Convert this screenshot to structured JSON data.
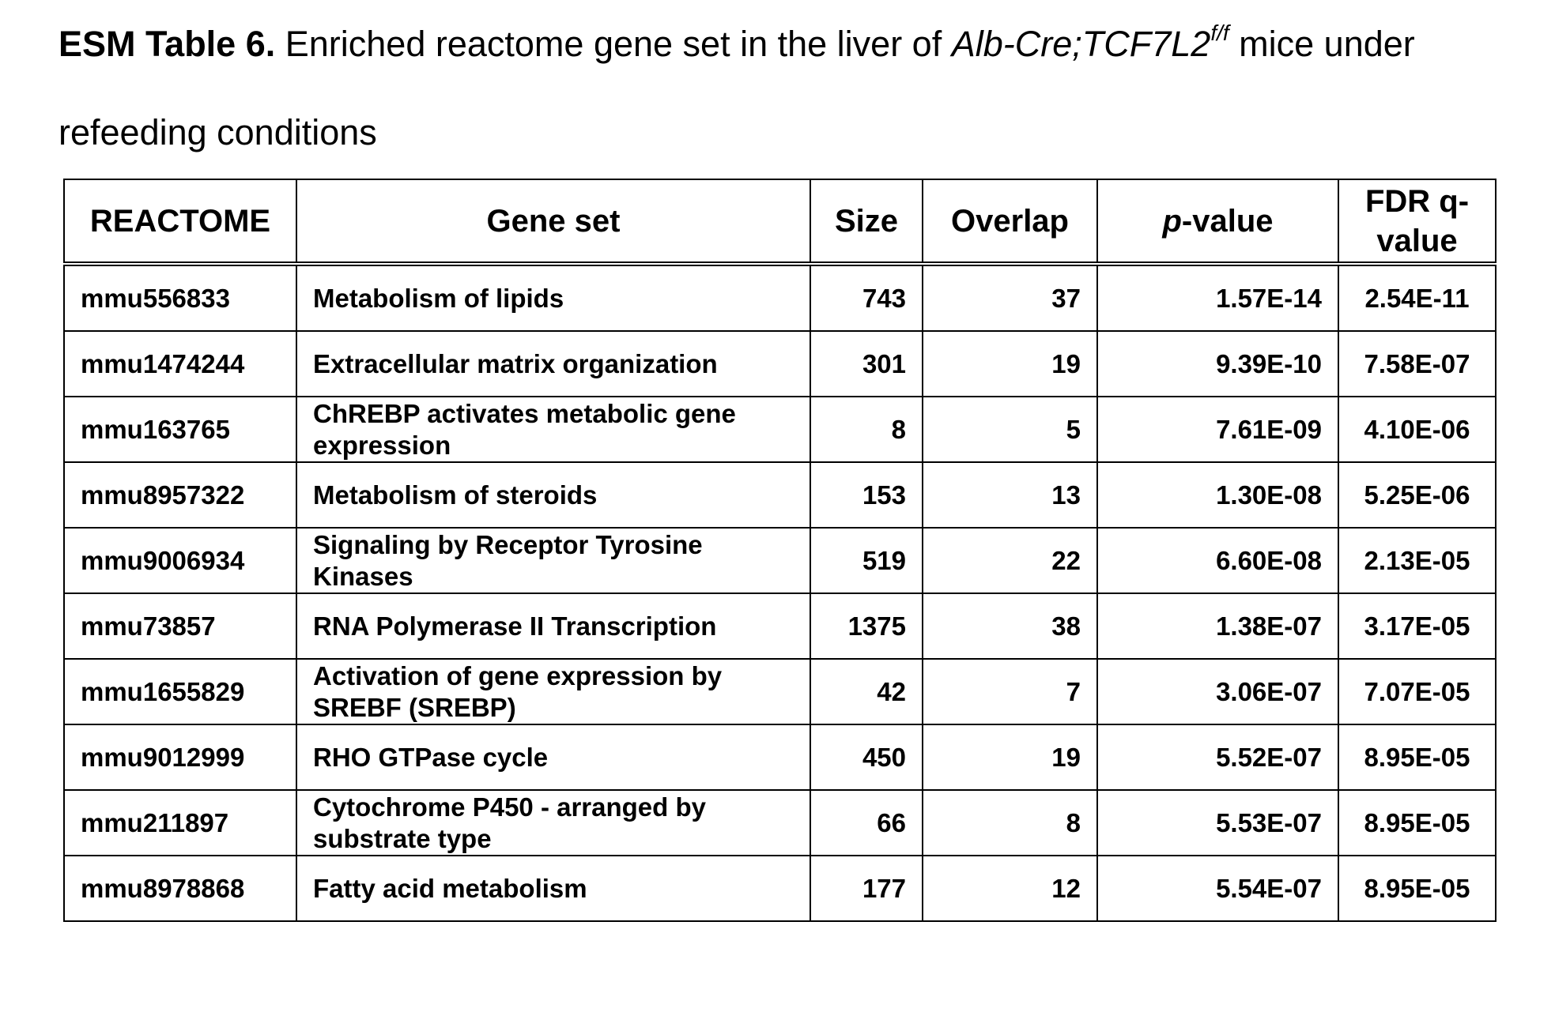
{
  "title": {
    "label": "ESM Table 6.",
    "text": " Enriched reactome gene set in the liver of ",
    "genotype": "Alb-Cre;TCF7L2",
    "superscript": "f/f",
    "suffix": " mice under refeeding conditions"
  },
  "table": {
    "header": {
      "reactome": "REACTOME",
      "gene_set": "Gene set",
      "size": "Size",
      "overlap": "Overlap",
      "p_italic": "p",
      "p_rest": "-value",
      "fdr": "FDR q-value"
    },
    "rows": [
      [
        "mmu556833",
        "Metabolism of lipids",
        743,
        37,
        "1.57E-14",
        "2.54E-11"
      ],
      [
        "mmu1474244",
        "Extracellular matrix organization",
        301,
        19,
        "9.39E-10",
        "7.58E-07"
      ],
      [
        "mmu163765",
        "ChREBP activates metabolic gene expression",
        8,
        5,
        "7.61E-09",
        "4.10E-06"
      ],
      [
        "mmu8957322",
        "Metabolism of steroids",
        153,
        13,
        "1.30E-08",
        "5.25E-06"
      ],
      [
        "mmu9006934",
        "Signaling by Receptor Tyrosine Kinases",
        519,
        22,
        "6.60E-08",
        "2.13E-05"
      ],
      [
        "mmu73857",
        "RNA Polymerase II Transcription",
        1375,
        38,
        "1.38E-07",
        "3.17E-05"
      ],
      [
        "mmu1655829",
        "Activation of gene expression by SREBF (SREBP)",
        42,
        7,
        "3.06E-07",
        "7.07E-05"
      ],
      [
        "mmu9012999",
        "RHO GTPase cycle",
        450,
        19,
        "5.52E-07",
        "8.95E-05"
      ],
      [
        "mmu211897",
        "Cytochrome P450 - arranged by substrate type",
        66,
        8,
        "5.53E-07",
        "8.95E-05"
      ],
      [
        "mmu8978868",
        "Fatty acid metabolism",
        177,
        12,
        "5.54E-07",
        "8.95E-05"
      ]
    ]
  }
}
